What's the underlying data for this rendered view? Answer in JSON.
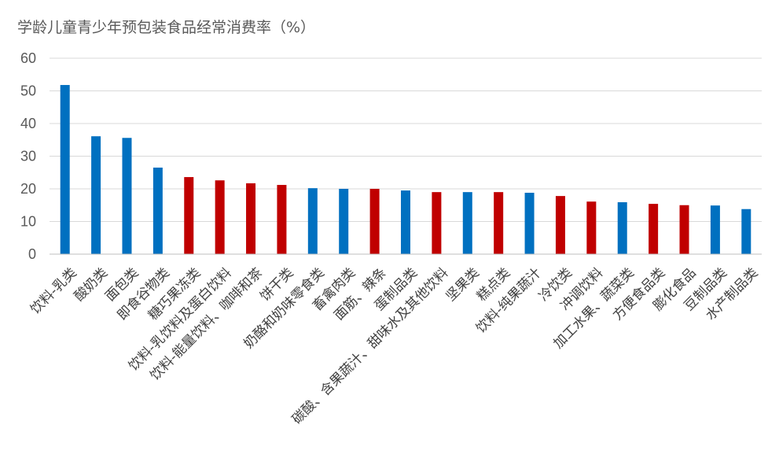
{
  "chart_data": {
    "type": "bar",
    "title": "学龄儿童青少年预包装食品经常消费率（%）",
    "xlabel": "",
    "ylabel": "",
    "ylim": [
      0,
      60
    ],
    "yticks": [
      0,
      10,
      20,
      30,
      40,
      50,
      60
    ],
    "grid": true,
    "legend": "none",
    "colors": {
      "blue": "#0070c0",
      "red": "#c00000"
    },
    "categories": [
      "饮料-乳类",
      "酸奶类",
      "面包类",
      "即食谷物类",
      "糖巧果冻类",
      "饮料-乳饮料及蛋白饮料",
      "饮料-能量饮料、咖啡和茶",
      "饼干类",
      "奶酪和奶味零食类",
      "畜禽肉类",
      "面筋、辣条",
      "蛋制品类",
      "碳酸、含果蔬汁、甜味水及其他饮料",
      "坚果类",
      "糕点类",
      "饮料-纯果蔬汁",
      "冷饮类",
      "冲调饮料",
      "加工水果、蔬菜类",
      "方便食品类",
      "膨化食品",
      "豆制品类",
      "水产制品类"
    ],
    "values": [
      51.8,
      36.1,
      35.6,
      26.5,
      23.6,
      22.6,
      21.7,
      21.2,
      20.2,
      20.0,
      20.0,
      19.5,
      19.0,
      19.0,
      19.0,
      18.8,
      17.8,
      16.1,
      15.9,
      15.4,
      15.0,
      14.9,
      13.8
    ],
    "bar_colors": [
      "blue",
      "blue",
      "blue",
      "blue",
      "red",
      "red",
      "red",
      "red",
      "blue",
      "blue",
      "red",
      "blue",
      "red",
      "blue",
      "red",
      "blue",
      "red",
      "red",
      "blue",
      "red",
      "red",
      "blue",
      "blue"
    ]
  }
}
